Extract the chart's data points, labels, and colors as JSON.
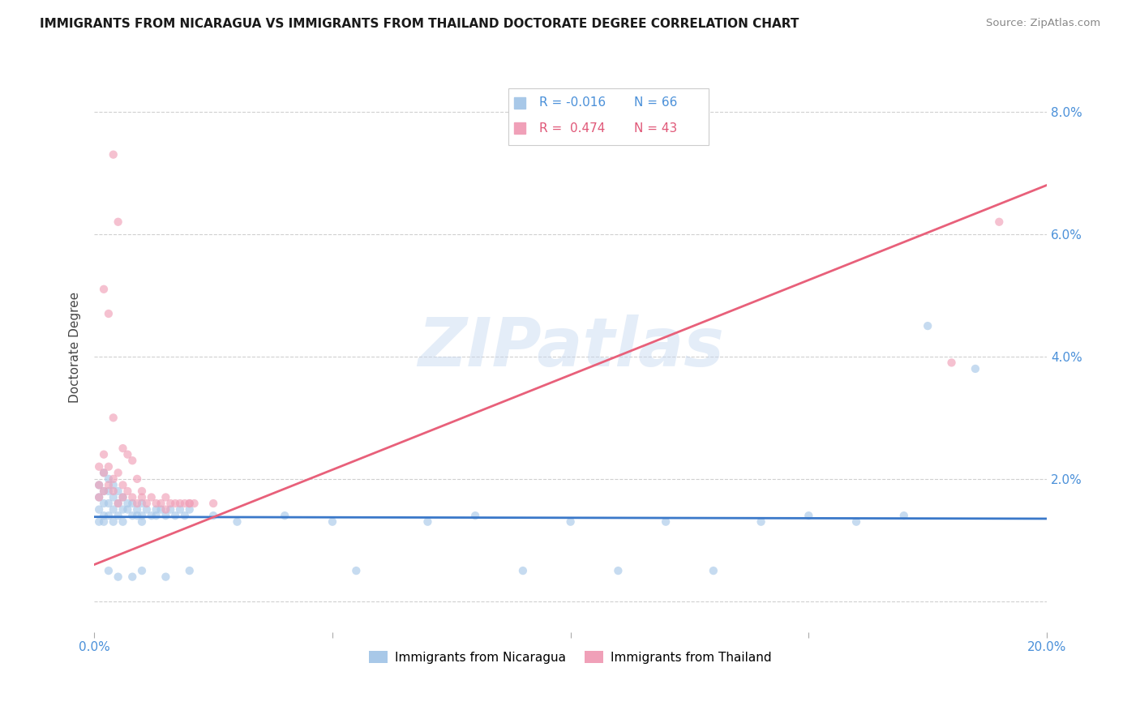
{
  "title": "IMMIGRANTS FROM NICARAGUA VS IMMIGRANTS FROM THAILAND DOCTORATE DEGREE CORRELATION CHART",
  "source": "Source: ZipAtlas.com",
  "ylabel": "Doctorate Degree",
  "x_min": 0.0,
  "x_max": 0.2,
  "y_min": -0.005,
  "y_max": 0.088,
  "x_ticks": [
    0.0,
    0.05,
    0.1,
    0.15,
    0.2
  ],
  "x_tick_labels": [
    "0.0%",
    "",
    "",
    "",
    "20.0%"
  ],
  "y_ticks": [
    0.0,
    0.02,
    0.04,
    0.06,
    0.08
  ],
  "y_tick_labels_right": [
    "",
    "2.0%",
    "4.0%",
    "6.0%",
    "8.0%"
  ],
  "color_nicaragua": "#a8c8e8",
  "color_thailand": "#f0a0b8",
  "color_line_nicaragua": "#3a78c9",
  "color_line_thailand": "#e8607a",
  "watermark": "ZIPatlas",
  "nic_line_x0": 0.0,
  "nic_line_x1": 0.2,
  "nic_line_y0": 0.0138,
  "nic_line_y1": 0.0135,
  "thai_line_x0": 0.0,
  "thai_line_x1": 0.2,
  "thai_line_y0": 0.006,
  "thai_line_y1": 0.068,
  "nicaragua_points": [
    [
      0.001,
      0.019
    ],
    [
      0.001,
      0.017
    ],
    [
      0.001,
      0.015
    ],
    [
      0.001,
      0.013
    ],
    [
      0.002,
      0.021
    ],
    [
      0.002,
      0.018
    ],
    [
      0.002,
      0.016
    ],
    [
      0.002,
      0.014
    ],
    [
      0.002,
      0.013
    ],
    [
      0.003,
      0.02
    ],
    [
      0.003,
      0.018
    ],
    [
      0.003,
      0.016
    ],
    [
      0.003,
      0.014
    ],
    [
      0.004,
      0.019
    ],
    [
      0.004,
      0.017
    ],
    [
      0.004,
      0.015
    ],
    [
      0.004,
      0.013
    ],
    [
      0.005,
      0.018
    ],
    [
      0.005,
      0.016
    ],
    [
      0.005,
      0.014
    ],
    [
      0.006,
      0.017
    ],
    [
      0.006,
      0.015
    ],
    [
      0.006,
      0.013
    ],
    [
      0.007,
      0.016
    ],
    [
      0.007,
      0.015
    ],
    [
      0.008,
      0.016
    ],
    [
      0.008,
      0.014
    ],
    [
      0.009,
      0.015
    ],
    [
      0.009,
      0.014
    ],
    [
      0.01,
      0.016
    ],
    [
      0.01,
      0.014
    ],
    [
      0.01,
      0.013
    ],
    [
      0.011,
      0.015
    ],
    [
      0.012,
      0.014
    ],
    [
      0.013,
      0.015
    ],
    [
      0.013,
      0.014
    ],
    [
      0.014,
      0.015
    ],
    [
      0.015,
      0.014
    ],
    [
      0.016,
      0.015
    ],
    [
      0.017,
      0.014
    ],
    [
      0.018,
      0.015
    ],
    [
      0.019,
      0.014
    ],
    [
      0.02,
      0.015
    ],
    [
      0.025,
      0.014
    ],
    [
      0.03,
      0.013
    ],
    [
      0.04,
      0.014
    ],
    [
      0.05,
      0.013
    ],
    [
      0.055,
      0.005
    ],
    [
      0.07,
      0.013
    ],
    [
      0.08,
      0.014
    ],
    [
      0.09,
      0.005
    ],
    [
      0.1,
      0.013
    ],
    [
      0.11,
      0.005
    ],
    [
      0.12,
      0.013
    ],
    [
      0.13,
      0.005
    ],
    [
      0.14,
      0.013
    ],
    [
      0.15,
      0.014
    ],
    [
      0.16,
      0.013
    ],
    [
      0.17,
      0.014
    ],
    [
      0.175,
      0.045
    ],
    [
      0.185,
      0.038
    ],
    [
      0.003,
      0.005
    ],
    [
      0.005,
      0.004
    ],
    [
      0.008,
      0.004
    ],
    [
      0.01,
      0.005
    ],
    [
      0.015,
      0.004
    ],
    [
      0.02,
      0.005
    ]
  ],
  "thailand_points": [
    [
      0.001,
      0.022
    ],
    [
      0.001,
      0.019
    ],
    [
      0.001,
      0.017
    ],
    [
      0.002,
      0.024
    ],
    [
      0.002,
      0.021
    ],
    [
      0.002,
      0.018
    ],
    [
      0.003,
      0.022
    ],
    [
      0.003,
      0.019
    ],
    [
      0.004,
      0.02
    ],
    [
      0.004,
      0.018
    ],
    [
      0.005,
      0.021
    ],
    [
      0.005,
      0.016
    ],
    [
      0.006,
      0.019
    ],
    [
      0.006,
      0.017
    ],
    [
      0.007,
      0.018
    ],
    [
      0.008,
      0.017
    ],
    [
      0.009,
      0.016
    ],
    [
      0.01,
      0.017
    ],
    [
      0.011,
      0.016
    ],
    [
      0.012,
      0.017
    ],
    [
      0.013,
      0.016
    ],
    [
      0.014,
      0.016
    ],
    [
      0.015,
      0.017
    ],
    [
      0.016,
      0.016
    ],
    [
      0.017,
      0.016
    ],
    [
      0.018,
      0.016
    ],
    [
      0.019,
      0.016
    ],
    [
      0.02,
      0.016
    ],
    [
      0.021,
      0.016
    ],
    [
      0.025,
      0.016
    ],
    [
      0.002,
      0.051
    ],
    [
      0.003,
      0.047
    ],
    [
      0.004,
      0.03
    ],
    [
      0.004,
      0.073
    ],
    [
      0.005,
      0.062
    ],
    [
      0.006,
      0.025
    ],
    [
      0.007,
      0.024
    ],
    [
      0.008,
      0.023
    ],
    [
      0.009,
      0.02
    ],
    [
      0.01,
      0.018
    ],
    [
      0.18,
      0.039
    ],
    [
      0.19,
      0.062
    ],
    [
      0.015,
      0.015
    ],
    [
      0.02,
      0.016
    ]
  ],
  "nic_point_sizes": 55,
  "thai_point_sizes": 55
}
